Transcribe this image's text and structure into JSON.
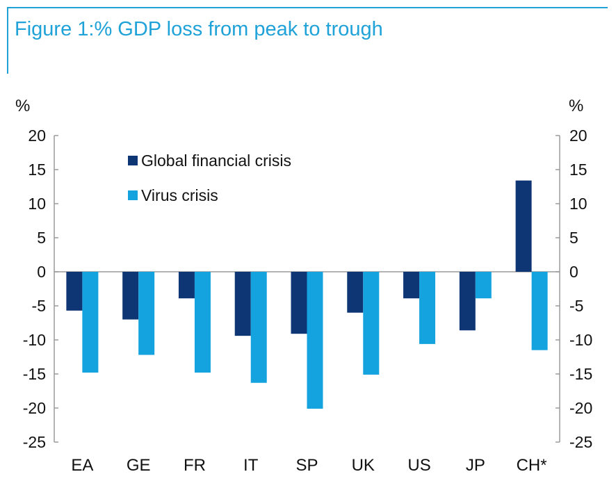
{
  "figure": {
    "title": "Figure 1:% GDP loss from peak to trough",
    "accent_color": "#1fa2d8"
  },
  "chart_data": {
    "type": "bar",
    "title": "Figure 1:% GDP loss from peak to trough",
    "ylabel_left": "%",
    "ylabel_right": "%",
    "ylim": [
      -25,
      20
    ],
    "yticks": [
      20,
      15,
      10,
      5,
      0,
      -5,
      -10,
      -15,
      -20,
      -25
    ],
    "categories": [
      "EA",
      "GE",
      "FR",
      "IT",
      "SP",
      "UK",
      "US",
      "JP",
      "CH*"
    ],
    "series": [
      {
        "name": "Global financial crisis",
        "color": "#0f3674",
        "values": [
          -5.7,
          -7.0,
          -3.9,
          -9.4,
          -9.1,
          -6.0,
          -3.9,
          -8.6,
          13.4
        ]
      },
      {
        "name": "Virus crisis",
        "color": "#14a3de",
        "values": [
          -14.8,
          -12.2,
          -14.8,
          -16.3,
          -20.1,
          -15.1,
          -10.6,
          -3.9,
          -11.5
        ]
      }
    ],
    "legend_position": "top-left",
    "grid": false
  }
}
